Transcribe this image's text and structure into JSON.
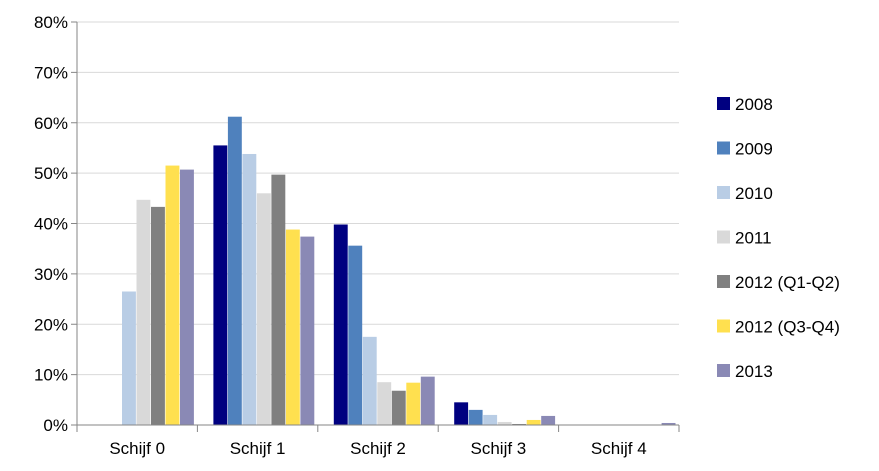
{
  "chart_data": {
    "type": "bar",
    "categories": [
      "Schijf 0",
      "Schijf 1",
      "Schijf 2",
      "Schijf 3",
      "Schijf 4"
    ],
    "series": [
      {
        "name": "2008",
        "color": "#000080",
        "values": [
          0,
          55.5,
          39.8,
          4.5,
          0
        ]
      },
      {
        "name": "2009",
        "color": "#4F81BD",
        "values": [
          0,
          61.2,
          35.6,
          3.0,
          0
        ]
      },
      {
        "name": "2010",
        "color": "#B9CDE5",
        "values": [
          26.5,
          53.8,
          17.5,
          2.0,
          0
        ]
      },
      {
        "name": "2011",
        "color": "#D9D9D9",
        "values": [
          44.7,
          46.0,
          8.5,
          0.6,
          0
        ]
      },
      {
        "name": "2012 (Q1-Q2)",
        "color": "#808080",
        "values": [
          43.3,
          49.7,
          6.8,
          0.2,
          0
        ]
      },
      {
        "name": "2012 (Q3-Q4)",
        "color": "#FFE04F",
        "values": [
          51.5,
          38.8,
          8.4,
          1.0,
          0
        ]
      },
      {
        "name": "2013",
        "color": "#8A89B5",
        "values": [
          50.7,
          37.4,
          9.6,
          1.8,
          0.4
        ]
      }
    ],
    "ylim": [
      0,
      80
    ],
    "yticks": [
      "0%",
      "10%",
      "20%",
      "30%",
      "40%",
      "50%",
      "60%",
      "70%",
      "80%"
    ],
    "grid": true,
    "legend_position": "right",
    "title": "",
    "xlabel": "",
    "ylabel": ""
  }
}
